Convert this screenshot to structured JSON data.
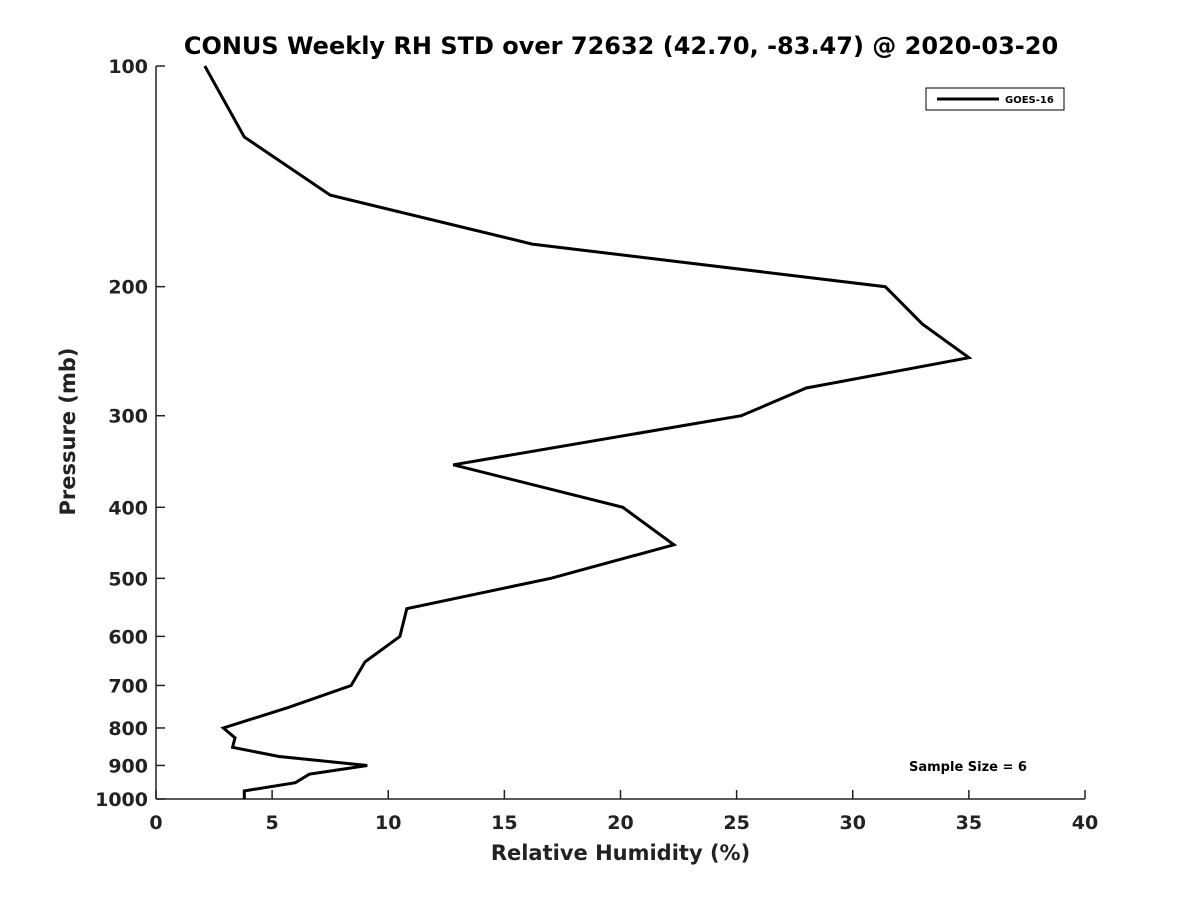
{
  "chart_data": {
    "type": "line",
    "title": "CONUS Weekly RH STD over 72632 (42.70, -83.47) @ 2020-03-20",
    "xlabel": "Relative Humidity (%)",
    "ylabel": "Pressure (mb)",
    "xlim": [
      0,
      40
    ],
    "ylim": [
      100,
      1000
    ],
    "y_scale": "log",
    "y_reversed": true,
    "x_ticks": [
      0,
      5,
      10,
      15,
      20,
      25,
      30,
      35,
      40
    ],
    "y_ticks": [
      100,
      200,
      300,
      400,
      500,
      600,
      700,
      800,
      900,
      1000
    ],
    "grid": false,
    "legend_position": "top-right",
    "series": [
      {
        "name": "GOES-16",
        "color": "#000000",
        "points": [
          {
            "rh": 2.1,
            "p": 100
          },
          {
            "rh": 3.8,
            "p": 125
          },
          {
            "rh": 7.5,
            "p": 150
          },
          {
            "rh": 16.2,
            "p": 175
          },
          {
            "rh": 31.4,
            "p": 200
          },
          {
            "rh": 33.0,
            "p": 225
          },
          {
            "rh": 35.0,
            "p": 250
          },
          {
            "rh": 28.0,
            "p": 275
          },
          {
            "rh": 25.2,
            "p": 300
          },
          {
            "rh": 12.8,
            "p": 350
          },
          {
            "rh": 20.1,
            "p": 400
          },
          {
            "rh": 22.3,
            "p": 450
          },
          {
            "rh": 17.0,
            "p": 500
          },
          {
            "rh": 10.8,
            "p": 550
          },
          {
            "rh": 10.5,
            "p": 600
          },
          {
            "rh": 9.0,
            "p": 650
          },
          {
            "rh": 8.4,
            "p": 700
          },
          {
            "rh": 5.7,
            "p": 750
          },
          {
            "rh": 2.9,
            "p": 800
          },
          {
            "rh": 3.4,
            "p": 825
          },
          {
            "rh": 3.3,
            "p": 850
          },
          {
            "rh": 5.3,
            "p": 875
          },
          {
            "rh": 9.1,
            "p": 900
          },
          {
            "rh": 6.6,
            "p": 925
          },
          {
            "rh": 6.0,
            "p": 950
          },
          {
            "rh": 3.8,
            "p": 975
          },
          {
            "rh": 3.8,
            "p": 1000
          }
        ]
      }
    ],
    "annotation": "Sample Size = 6"
  }
}
